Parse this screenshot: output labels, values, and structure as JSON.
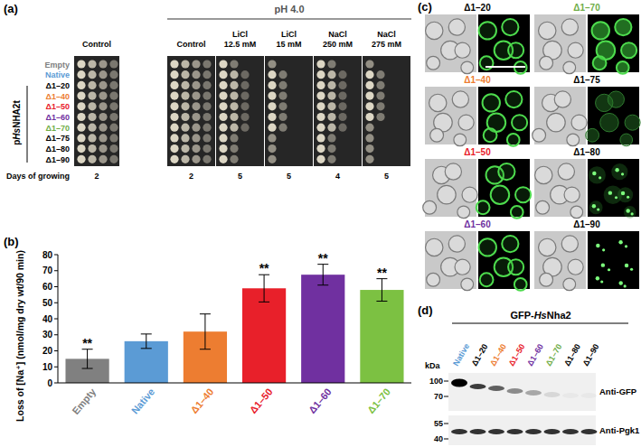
{
  "panel_labels": [
    "(a)",
    "(b)",
    "(c)",
    "(d)"
  ],
  "chart_data": {
    "type": "bar",
    "ylabel": "Loss of [Na⁺] (nmol/mg dry wt/90 min)",
    "categories": [
      "Empty",
      "Native",
      "Δ1–40",
      "Δ1–50",
      "Δ1–60",
      "Δ1–70"
    ],
    "values": [
      15,
      26,
      32,
      59,
      67.5,
      58
    ],
    "errors": [
      6,
      4.5,
      11,
      8.5,
      6.5,
      7
    ],
    "annotations": [
      "**",
      null,
      null,
      "**",
      "**",
      "**"
    ],
    "colors": [
      "#808080",
      "#5b9bd5",
      "#ed7d31",
      "#e8202a",
      "#7030a0",
      "#7cc142"
    ],
    "ylim": [
      0,
      80
    ],
    "yticks": [
      0,
      10,
      20,
      30,
      40,
      50,
      60,
      70,
      80
    ],
    "grid": false
  },
  "spot_assay": {
    "header": "pH 4.0",
    "construct_parts": [
      "p",
      "Hs",
      "NHA2t"
    ],
    "days_label": "Days of growing",
    "rows": [
      {
        "label": "Empty",
        "color": "#808080"
      },
      {
        "label": "Native",
        "color": "#5b9bd5"
      },
      {
        "label": "Δ1–20",
        "color": "#000000"
      },
      {
        "label": "Δ1–40",
        "color": "#ed7d31"
      },
      {
        "label": "Δ1–50",
        "color": "#e8202a"
      },
      {
        "label": "Δ1–60",
        "color": "#7030a0"
      },
      {
        "label": "Δ1–70",
        "color": "#70ad47"
      },
      {
        "label": "Δ1–75",
        "color": "#000000"
      },
      {
        "label": "Δ1–80",
        "color": "#000000"
      },
      {
        "label": "Δ1–90",
        "color": "#000000"
      }
    ],
    "columns": [
      {
        "label": [
          "Control"
        ],
        "days": 2,
        "growth": [
          4,
          4,
          4,
          4,
          4,
          4,
          4,
          4,
          4,
          4
        ]
      },
      {
        "label": [
          "Control"
        ],
        "days": 2,
        "growth": [
          4,
          4,
          4,
          4,
          4,
          4,
          4,
          4,
          4,
          4
        ]
      },
      {
        "label": [
          "LiCl",
          "12.5 mM"
        ],
        "days": 5,
        "growth": [
          2,
          3,
          3,
          3,
          3,
          3,
          3,
          2,
          2,
          2
        ]
      },
      {
        "label": [
          "LiCl",
          "15 mM"
        ],
        "days": 5,
        "growth": [
          1,
          2,
          2,
          2,
          2,
          2,
          2,
          1,
          1,
          1
        ]
      },
      {
        "label": [
          "NaCl",
          "250 mM"
        ],
        "days": 4,
        "growth": [
          2,
          3,
          3,
          3,
          3,
          3,
          3,
          2,
          2,
          2
        ]
      },
      {
        "label": [
          "NaCl",
          "275 mM"
        ],
        "days": 5,
        "growth": [
          1,
          2,
          2,
          2,
          2,
          2,
          1,
          1,
          1,
          1
        ]
      }
    ]
  },
  "microscopy": {
    "panels": [
      {
        "label": "Δ1–20",
        "color": "#000000"
      },
      {
        "label": "Δ1–40",
        "color": "#ed7d31"
      },
      {
        "label": "Δ1–50",
        "color": "#e8202a"
      },
      {
        "label": "Δ1–60",
        "color": "#7030a0"
      },
      {
        "label": "Δ1–70",
        "color": "#70ad47"
      },
      {
        "label": "Δ1–75",
        "color": "#000000"
      },
      {
        "label": "Δ1–80",
        "color": "#000000"
      },
      {
        "label": "Δ1–90",
        "color": "#000000"
      }
    ]
  },
  "western_blot": {
    "title_parts": [
      "GFP-",
      "Hs",
      "Nha2"
    ],
    "kda_label": "kDa",
    "lanes": [
      {
        "label": "Native",
        "color": "#5b9bd5"
      },
      {
        "label": "Δ1–20",
        "color": "#000000"
      },
      {
        "label": "Δ1–40",
        "color": "#ed7d31"
      },
      {
        "label": "Δ1–50",
        "color": "#e8202a"
      },
      {
        "label": "Δ1–60",
        "color": "#7030a0"
      },
      {
        "label": "Δ1–70",
        "color": "#70ad47"
      },
      {
        "label": "Δ1–80",
        "color": "#000000"
      },
      {
        "label": "Δ1–90",
        "color": "#000000"
      }
    ],
    "blots": [
      {
        "antibody": "Anti-GFP",
        "markers": [
          100,
          70
        ]
      },
      {
        "antibody": "Anti-Pgk1",
        "markers": [
          55,
          40
        ]
      }
    ]
  }
}
